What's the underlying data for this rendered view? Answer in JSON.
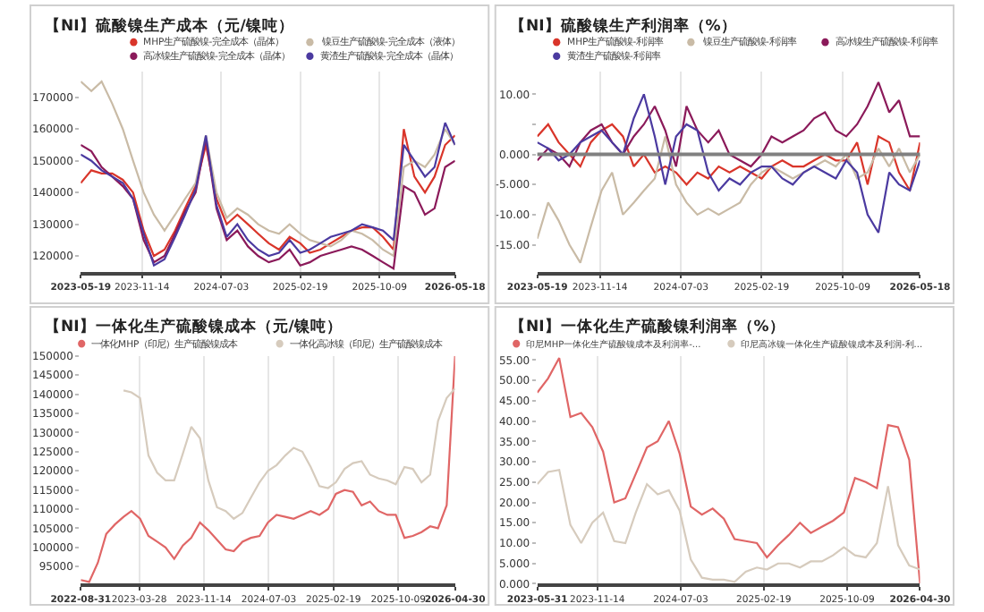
{
  "chart_data": [
    {
      "type": "line",
      "title": "【NI】硫酸镍生产成本（元/镍吨）",
      "legend": "top",
      "grid": "x",
      "x": [
        "2023-05-19",
        "2023-06-19",
        "2023-07-19",
        "2023-08-19",
        "2023-09-19",
        "2023-10-19",
        "2023-11-19",
        "2023-12-19",
        "2024-01-19",
        "2024-02-19",
        "2024-03-19",
        "2024-04-19",
        "2024-05-19",
        "2024-06-19",
        "2024-07-19",
        "2024-08-19",
        "2024-09-19",
        "2024-10-19",
        "2024-11-19",
        "2024-12-19",
        "2025-01-19",
        "2025-02-19",
        "2025-03-19",
        "2025-04-19",
        "2025-05-19",
        "2025-06-19",
        "2025-07-19",
        "2025-08-19",
        "2025-09-19",
        "2025-10-19",
        "2025-11-19",
        "2025-12-19",
        "2026-01-19",
        "2026-02-19",
        "2026-03-19",
        "2026-04-19",
        "2026-05-18"
      ],
      "series": [
        {
          "name": "MHP生产硫酸镍-完全成本（晶体）",
          "color": "#d9352a",
          "values": [
            143000,
            147000,
            146000,
            146000,
            144000,
            140000,
            128000,
            120000,
            122000,
            128000,
            135000,
            142000,
            155000,
            138000,
            130000,
            133000,
            130000,
            127000,
            124000,
            122000,
            126000,
            124000,
            121000,
            122000,
            124000,
            126000,
            128000,
            129000,
            129000,
            126000,
            122000,
            160000,
            145000,
            140000,
            145000,
            155000,
            158000
          ]
        },
        {
          "name": "镍豆生产硫酸镍-完全成本（液体）",
          "color": "#c9bba6",
          "values": [
            175000,
            172000,
            175000,
            168000,
            160000,
            150000,
            140000,
            133000,
            128000,
            133000,
            138000,
            143000,
            158000,
            140000,
            132000,
            135000,
            133000,
            130000,
            128000,
            127000,
            130000,
            127000,
            125000,
            124000,
            123000,
            125000,
            128000,
            127000,
            125000,
            122000,
            120000,
            148000,
            150000,
            148000,
            152000,
            160000,
            155000
          ]
        },
        {
          "name": "高冰镍生产硫酸镍-完全成本（晶体）",
          "color": "#8b1a5a",
          "values": [
            155000,
            153000,
            148000,
            145000,
            142000,
            138000,
            125000,
            118000,
            120000,
            127000,
            134000,
            140000,
            157000,
            135000,
            125000,
            128000,
            123000,
            120000,
            118000,
            119000,
            122000,
            117000,
            118000,
            120000,
            121000,
            122000,
            123000,
            122000,
            120000,
            118000,
            116000,
            142000,
            140000,
            133000,
            135000,
            148000,
            150000
          ]
        },
        {
          "name": "黄渣生产硫酸镍-完全成本（晶体）",
          "color": "#4b3aa0",
          "values": [
            152000,
            150000,
            147000,
            145000,
            143000,
            138000,
            127000,
            117000,
            119000,
            126000,
            133000,
            141000,
            158000,
            136000,
            126000,
            130000,
            125000,
            122000,
            120000,
            121000,
            125000,
            121000,
            122000,
            124000,
            126000,
            127000,
            128000,
            130000,
            129000,
            128000,
            125000,
            155000,
            150000,
            145000,
            148000,
            162000,
            155000
          ]
        }
      ],
      "xlim": [
        "2023-05-19",
        "2026-05-18"
      ],
      "xticks": [
        "2023-05-19",
        "2023-11-14",
        "2024-07-03",
        "2025-02-19",
        "2025-10-09",
        "2026-05-18"
      ],
      "ylim": [
        115000,
        178000
      ],
      "yticks": [
        120000,
        130000,
        140000,
        150000,
        160000,
        170000
      ]
    },
    {
      "type": "line",
      "title": "【NI】硫酸镍生产利润率（%）",
      "legend": "top",
      "grid": "x",
      "x": [
        "2023-05-19",
        "2023-06-19",
        "2023-07-19",
        "2023-08-19",
        "2023-09-19",
        "2023-10-19",
        "2023-11-19",
        "2023-12-19",
        "2024-01-19",
        "2024-02-19",
        "2024-03-19",
        "2024-04-19",
        "2024-05-19",
        "2024-06-19",
        "2024-07-19",
        "2024-08-19",
        "2024-09-19",
        "2024-10-19",
        "2024-11-19",
        "2024-12-19",
        "2025-01-19",
        "2025-02-19",
        "2025-03-19",
        "2025-04-19",
        "2025-05-19",
        "2025-06-19",
        "2025-07-19",
        "2025-08-19",
        "2025-09-19",
        "2025-10-19",
        "2025-11-19",
        "2025-12-19",
        "2026-01-19",
        "2026-02-19",
        "2026-03-19",
        "2026-04-19",
        "2026-05-18"
      ],
      "series": [
        {
          "name": "MHP生产硫酸镍-利润率",
          "color": "#d9352a",
          "values": [
            3,
            5,
            2,
            0,
            -2,
            2,
            4,
            5,
            3,
            -2,
            0,
            -3,
            -2,
            -3,
            -5,
            -3,
            -4,
            -2,
            -3,
            -2,
            -3,
            -4,
            -2,
            -1,
            -2,
            -2,
            -1,
            0,
            -1,
            -1,
            2,
            -5,
            3,
            2,
            -3,
            -6,
            2
          ]
        },
        {
          "name": "镍豆生产硫酸镍-利润率",
          "color": "#c9bba6",
          "values": [
            -14,
            -8,
            -11,
            -15,
            -18,
            -12,
            -6,
            -3,
            -10,
            -8,
            -6,
            -4,
            3,
            -5,
            -8,
            -10,
            -9,
            -10,
            -9,
            -8,
            -5,
            -3,
            -2,
            -3,
            -4,
            -3,
            -2,
            -1,
            -2,
            0,
            -4,
            -3,
            1,
            -2,
            1,
            -3,
            0
          ]
        },
        {
          "name": "高冰镍生产硫酸镍-利润率",
          "color": "#8b1a5a",
          "values": [
            -1,
            1,
            0,
            -2,
            2,
            4,
            5,
            2,
            0,
            3,
            5,
            8,
            4,
            -2,
            8,
            4,
            2,
            4,
            0,
            -1,
            -2,
            0,
            3,
            2,
            3,
            4,
            6,
            7,
            4,
            3,
            5,
            8,
            12,
            7,
            9,
            3,
            3
          ]
        },
        {
          "name": "黄渣生产硫酸镍-利润率",
          "color": "#4b3aa0",
          "values": [
            2,
            1,
            -1,
            0,
            2,
            3,
            4,
            2,
            0,
            6,
            10,
            3,
            -5,
            3,
            5,
            4,
            -3,
            -6,
            -4,
            -5,
            -3,
            -2,
            -2,
            -4,
            -5,
            -3,
            -2,
            -3,
            -4,
            -1,
            -3,
            -10,
            -13,
            -3,
            -5,
            -6,
            -1
          ]
        }
      ],
      "xlim": [
        "2023-05-19",
        "2026-05-18"
      ],
      "xticks": [
        "2023-05-19",
        "2023-11-14",
        "2024-07-03",
        "2025-02-19",
        "2025-10-09",
        "2026-05-18"
      ],
      "ylim": [
        -19.5,
        13.7
      ],
      "yticks": [
        {
          "value": -15,
          "label": "-15.00"
        },
        {
          "value": -10,
          "label": "-10.00"
        },
        {
          "value": -5,
          "label": "-5.000"
        },
        {
          "value": 0,
          "label": "0.000"
        },
        {
          "value": 5,
          "label": null
        },
        {
          "value": 10,
          "label": "10.00"
        }
      ],
      "ref_lines": [
        {
          "axis": "y",
          "value": 0,
          "color": "#808080"
        }
      ]
    },
    {
      "type": "line",
      "title": "【NI】一体化生产硫酸镍成本（元/镍吨）",
      "legend": "top",
      "grid": "x",
      "series": [
        {
          "name": "一体化MHP（印尼）生产硫酸镍成本",
          "color": "#e06666",
          "x": [
            "2022-08-31",
            "2022-09-30",
            "2022-10-31",
            "2022-11-30",
            "2022-12-31",
            "2023-01-31",
            "2023-02-28",
            "2023-03-31",
            "2023-04-30",
            "2023-05-31",
            "2023-06-30",
            "2023-07-31",
            "2023-08-31",
            "2023-09-30",
            "2023-10-31",
            "2023-11-30",
            "2023-12-31",
            "2024-01-31",
            "2024-02-29",
            "2024-03-31",
            "2024-04-30",
            "2024-05-31",
            "2024-06-30",
            "2024-07-31",
            "2024-08-31",
            "2024-09-30",
            "2024-10-31",
            "2024-11-30",
            "2024-12-31",
            "2025-01-31",
            "2025-02-28",
            "2025-03-31",
            "2025-04-30",
            "2025-05-31",
            "2025-06-30",
            "2025-07-31",
            "2025-08-31",
            "2025-09-30",
            "2025-10-31",
            "2025-11-30",
            "2025-12-31",
            "2026-01-31",
            "2026-02-28",
            "2026-03-31",
            "2026-04-30"
          ],
          "values": [
            91500,
            91000,
            96000,
            103500,
            106000,
            108000,
            109500,
            107500,
            103000,
            101500,
            100000,
            97000,
            100500,
            102500,
            106500,
            104500,
            102000,
            99500,
            99000,
            101500,
            102500,
            103000,
            106500,
            108500,
            108000,
            107500,
            108500,
            109500,
            108500,
            110000,
            114000,
            115000,
            114500,
            111000,
            112000,
            109500,
            108500,
            108500,
            102500,
            103000,
            104000,
            105500,
            105000,
            111000,
            150000
          ]
        },
        {
          "name": "一体化高冰镍（印尼）生产硫酸镍成本",
          "color": "#d6cbbd",
          "x": [
            "2023-01-31",
            "2023-02-28",
            "2023-03-31",
            "2023-04-30",
            "2023-05-31",
            "2023-06-30",
            "2023-07-31",
            "2023-08-31",
            "2023-09-30",
            "2023-10-31",
            "2023-11-30",
            "2023-12-31",
            "2024-01-31",
            "2024-02-29",
            "2024-03-31",
            "2024-04-30",
            "2024-05-31",
            "2024-06-30",
            "2024-07-31",
            "2024-08-31",
            "2024-09-30",
            "2024-10-31",
            "2024-11-30",
            "2024-12-31",
            "2025-01-31",
            "2025-02-28",
            "2025-03-31",
            "2025-04-30",
            "2025-05-31",
            "2025-06-30",
            "2025-07-31",
            "2025-08-31",
            "2025-09-30",
            "2025-10-31",
            "2025-11-30",
            "2025-12-31",
            "2026-01-31",
            "2026-02-28",
            "2026-03-31",
            "2026-04-30"
          ],
          "values": [
            141000,
            140500,
            139000,
            124000,
            119500,
            117500,
            117500,
            124500,
            131500,
            128500,
            117500,
            110500,
            109500,
            107500,
            109000,
            113000,
            117000,
            120000,
            121500,
            124000,
            126000,
            125000,
            121000,
            116000,
            115500,
            117000,
            120500,
            122000,
            122500,
            119000,
            118000,
            117500,
            116500,
            121000,
            120500,
            117000,
            119000,
            133000,
            139000,
            141500
          ]
        }
      ],
      "xlim": [
        "2022-08-31",
        "2026-04-30"
      ],
      "xticks": [
        "2022-08-31",
        "2023-03-28",
        "2023-11-14",
        "2024-07-03",
        "2025-02-19",
        "2025-10-09",
        "2026-04-30"
      ],
      "ylim": [
        90500,
        150000
      ],
      "yticks": [
        95000,
        100000,
        105000,
        110000,
        115000,
        120000,
        125000,
        130000,
        135000,
        140000,
        145000,
        150000
      ]
    },
    {
      "type": "line",
      "title": "【NI】一体化生产硫酸镍利润率（%）",
      "legend": "top",
      "grid": "x",
      "x": [
        "2023-05-31",
        "2023-06-30",
        "2023-07-31",
        "2023-08-31",
        "2023-09-30",
        "2023-10-31",
        "2023-11-30",
        "2023-12-31",
        "2024-01-31",
        "2024-02-29",
        "2024-03-31",
        "2024-04-30",
        "2024-05-31",
        "2024-06-30",
        "2024-07-31",
        "2024-08-31",
        "2024-09-30",
        "2024-10-31",
        "2024-11-30",
        "2024-12-31",
        "2025-01-31",
        "2025-02-28",
        "2025-03-31",
        "2025-04-30",
        "2025-05-31",
        "2025-06-30",
        "2025-07-31",
        "2025-08-31",
        "2025-09-30",
        "2025-10-31",
        "2025-11-30",
        "2025-12-31",
        "2026-01-31",
        "2026-02-28",
        "2026-03-31",
        "2026-04-30"
      ],
      "series": [
        {
          "name": "印尼MHP一体化生产硫酸镍成本及利润率-...",
          "color": "#e06666",
          "values": [
            47,
            50.5,
            55.5,
            41,
            42,
            38.5,
            32.5,
            20,
            21,
            27,
            33.5,
            35,
            40,
            32,
            19,
            17,
            18.5,
            16,
            11,
            10.5,
            10,
            6.5,
            9.5,
            12,
            15,
            12.5,
            14,
            15.5,
            17.5,
            26,
            25,
            23.5,
            39,
            38.5,
            30.5,
            0
          ]
        },
        {
          "name": "印尼高冰镍一体化生产硫酸镍成本及利润-利...",
          "color": "#d6cbbd",
          "values": [
            24.5,
            27.5,
            28,
            14.5,
            10,
            15,
            17.5,
            10.5,
            10,
            17.5,
            24.5,
            22,
            23,
            18,
            6,
            1.5,
            1,
            1,
            0.5,
            3,
            4,
            3.5,
            5,
            5,
            4,
            5.5,
            5.5,
            7,
            9,
            7,
            6.5,
            10,
            24,
            9.5,
            4.5,
            3.5
          ]
        }
      ],
      "xlim": [
        "2023-05-31",
        "2026-04-30"
      ],
      "xticks": [
        "2023-05-31",
        "2023-11-14",
        "2024-07-03",
        "2025-02-19",
        "2025-10-09",
        "2026-04-30"
      ],
      "ylim": [
        0,
        56
      ],
      "yticks": [
        {
          "value": 0,
          "label": "0.000"
        },
        {
          "value": 5,
          "label": "5.000"
        },
        {
          "value": 10,
          "label": "10.00"
        },
        {
          "value": 15,
          "label": "15.00"
        },
        {
          "value": 20,
          "label": "20.00"
        },
        {
          "value": 25,
          "label": "25.00"
        },
        {
          "value": 30,
          "label": "30.00"
        },
        {
          "value": 35,
          "label": "35.00"
        },
        {
          "value": 40,
          "label": "40.00"
        },
        {
          "value": 45,
          "label": "45.00"
        },
        {
          "value": 50,
          "label": "50.00"
        },
        {
          "value": 55,
          "label": "55.00"
        }
      ]
    }
  ]
}
